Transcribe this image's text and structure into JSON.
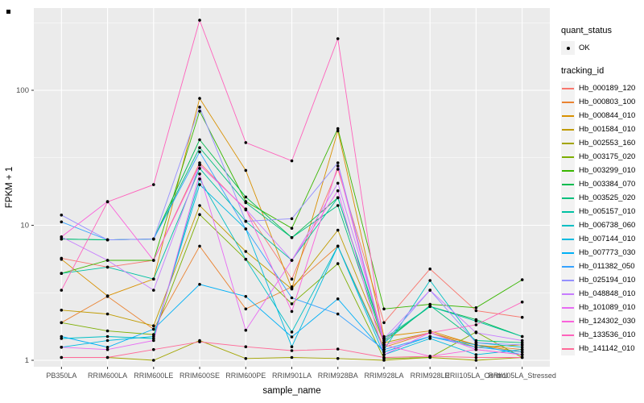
{
  "chart_data": {
    "type": "line",
    "title": "",
    "xlabel": "sample_name",
    "ylabel": "FPKM + 1",
    "y_scale": "log10",
    "y_ticks": [
      1,
      10,
      100
    ],
    "y_minor_ticks": [
      3.162,
      31.62,
      316.2
    ],
    "ylim": [
      0.9,
      410
    ],
    "grid": "on",
    "legend_position": "right",
    "categories": [
      "PB350LA",
      "RRIM600LA",
      "RRIM600LE",
      "RRIM600SE",
      "RRIM600PE",
      "RRIM901LA",
      "RRIM928BA",
      "RRIM928LA",
      "RRIM928LE",
      "RRII105LA_Control",
      "RRII105LA_Stressed"
    ],
    "series": [
      {
        "name": "Hb_000189_120",
        "color": "#F8766D",
        "values": [
          5.7,
          4.9,
          5.5,
          29,
          13.0,
          4.0,
          26,
          1.9,
          4.75,
          2.33,
          2.08
        ]
      },
      {
        "name": "Hb_000803_100",
        "color": "#EA8331",
        "values": [
          1.9,
          2.97,
          1.7,
          7.0,
          2.4,
          3.5,
          7.0,
          1.25,
          1.6,
          1.3,
          1.2
        ]
      },
      {
        "name": "Hb_000844_010",
        "color": "#D89000",
        "values": [
          5.6,
          3.0,
          4.0,
          87,
          25.5,
          3.4,
          50,
          1.5,
          1.65,
          1.3,
          1.15
        ]
      },
      {
        "name": "Hb_001584_010",
        "color": "#C09B00",
        "values": [
          2.35,
          2.2,
          1.8,
          14,
          6.4,
          3.37,
          9.2,
          1.35,
          1.6,
          1.25,
          1.3
        ]
      },
      {
        "name": "Hb_002553_160",
        "color": "#A3A500",
        "values": [
          1.05,
          1.05,
          1.0,
          1.4,
          1.03,
          1.05,
          1.03,
          1.0,
          1.05,
          1.0,
          1.05
        ]
      },
      {
        "name": "Hb_003175_020",
        "color": "#7CAE00",
        "values": [
          1.9,
          1.65,
          1.55,
          12,
          5.6,
          2.62,
          5.2,
          1.03,
          1.05,
          1.62,
          1.05
        ]
      },
      {
        "name": "Hb_003299_010",
        "color": "#39B600",
        "values": [
          4.4,
          5.5,
          5.5,
          70,
          15,
          9.5,
          52,
          2.4,
          2.6,
          2.45,
          3.95
        ]
      },
      {
        "name": "Hb_003384_070",
        "color": "#00BB4E",
        "values": [
          7.9,
          7.8,
          7.9,
          43,
          16.2,
          8.1,
          16,
          1.4,
          2.5,
          2.0,
          1.5
        ]
      },
      {
        "name": "Hb_003525_020",
        "color": "#00BF7D",
        "values": [
          7.9,
          7.8,
          7.9,
          37.6,
          14.7,
          8.1,
          14,
          1.35,
          2.55,
          1.4,
          1.35
        ]
      },
      {
        "name": "Hb_005157_010",
        "color": "#00C1A3",
        "values": [
          4.4,
          4.9,
          4.0,
          26.4,
          10.7,
          5.5,
          16,
          1.45,
          2.5,
          1.95,
          1.5
        ]
      },
      {
        "name": "Hb_006738_060",
        "color": "#00BFC4",
        "values": [
          1.45,
          1.5,
          1.45,
          22,
          5.6,
          1.62,
          7.0,
          1.2,
          3.9,
          1.35,
          1.25
        ]
      },
      {
        "name": "Hb_007144_010",
        "color": "#00BAE0",
        "values": [
          1.25,
          1.4,
          1.5,
          20,
          9.4,
          1.26,
          7.0,
          1.1,
          1.45,
          1.1,
          1.2
        ]
      },
      {
        "name": "Hb_007773_030",
        "color": "#00B0F6",
        "values": [
          1.5,
          1.25,
          1.7,
          3.65,
          2.97,
          1.49,
          2.85,
          1.15,
          1.5,
          1.3,
          1.1
        ]
      },
      {
        "name": "Hb_011382_050",
        "color": "#35A2FF",
        "values": [
          10.6,
          7.8,
          7.9,
          35,
          9.4,
          2.9,
          2.2,
          1.2,
          1.5,
          1.25,
          1.15
        ]
      },
      {
        "name": "Hb_025194_010",
        "color": "#9590FF",
        "values": [
          11.9,
          7.8,
          7.9,
          75,
          10.7,
          11.2,
          29,
          1.35,
          3.3,
          1.35,
          1.3
        ]
      },
      {
        "name": "Hb_048848_010",
        "color": "#C77CFF",
        "values": [
          8.2,
          5.5,
          3.3,
          28,
          13.2,
          5.5,
          20.5,
          1.45,
          3.3,
          1.6,
          1.4
        ]
      },
      {
        "name": "Hb_101089_010",
        "color": "#E76BF3",
        "values": [
          1.25,
          1.2,
          1.4,
          24,
          1.67,
          5.5,
          18,
          1.1,
          1.6,
          1.2,
          1.1
        ]
      },
      {
        "name": "Hb_124302_030",
        "color": "#FA62DB",
        "values": [
          8.2,
          15,
          5.5,
          28,
          13.2,
          2.3,
          27.5,
          1.3,
          1.07,
          1.2,
          1.1
        ]
      },
      {
        "name": "Hb_133536_010",
        "color": "#FF62BC",
        "values": [
          3.3,
          14.9,
          20,
          330,
          41,
          30,
          241,
          1.3,
          1.6,
          1.83,
          2.7
        ]
      },
      {
        "name": "Hb_141142_010",
        "color": "#FF6A98",
        "values": [
          1.05,
          1.05,
          1.2,
          1.37,
          1.26,
          1.18,
          1.21,
          1.05,
          1.07,
          1.05,
          1.05
        ]
      }
    ],
    "legend": {
      "quant_status": {
        "title": "quant_status",
        "items": [
          {
            "label": "OK",
            "symbol": "black-point"
          }
        ]
      },
      "tracking_id": {
        "title": "tracking_id"
      }
    },
    "style": {
      "panel_bg": "#EBEBEB",
      "grid_color": "#FFFFFF",
      "point_color": "#000000",
      "axis_text_color": "#4D4D4D",
      "axis_title_color": "#000000",
      "tick_color": "#333333",
      "legend_key_bg": "#F2F2F2"
    }
  }
}
